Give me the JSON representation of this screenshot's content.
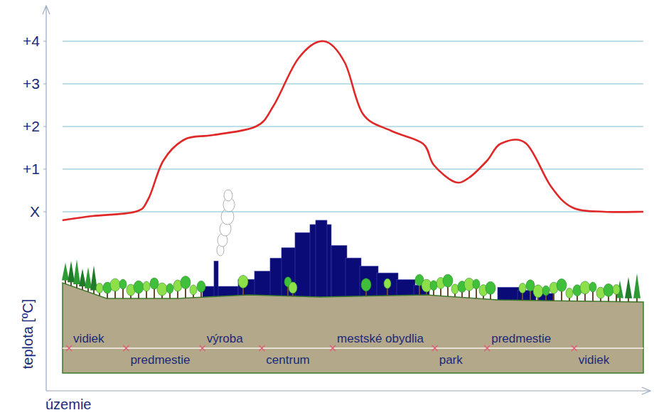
{
  "chart_data": {
    "type": "line",
    "y_label": "teplota [ºC]",
    "x_label": "územie",
    "x": [
      2.7,
      7.7,
      14.8,
      17.0,
      19.5,
      23.1,
      27.8,
      34.9,
      37.9,
      42.0,
      46.2,
      49.7,
      52.7,
      57.4,
      62.7,
      64.5,
      68.0,
      70.4,
      73.4,
      75.7,
      79.9,
      84.0,
      87.6,
      92.9,
      99.4
    ],
    "values": [
      -0.2,
      -0.1,
      0.0,
      0.3,
      1.2,
      1.7,
      1.8,
      2.0,
      2.5,
      3.6,
      4.0,
      3.5,
      2.3,
      1.9,
      1.6,
      1.1,
      0.7,
      0.8,
      1.2,
      1.6,
      1.6,
      0.6,
      0.1,
      0.0,
      0.0
    ],
    "color": "#e02828",
    "xlim": [
      0,
      100
    ],
    "ylim": [
      -4.2,
      4.8
    ],
    "yticks": [
      {
        "value": 0,
        "label": "X"
      },
      {
        "value": 1,
        "label": "+1"
      },
      {
        "value": 2,
        "label": "+2"
      },
      {
        "value": 3,
        "label": "+3"
      },
      {
        "value": 4,
        "label": "+4"
      }
    ],
    "grid": true,
    "tick_labels": "y",
    "zones": [
      {
        "label": "vidiek",
        "x": 3.8
      },
      {
        "label": "predmestie",
        "x": 13.3
      },
      {
        "label": "výroba",
        "x": 26.0
      },
      {
        "label": "centrum",
        "x": 35.9
      },
      {
        "label": "mestské obydlia",
        "x": 47.7
      },
      {
        "label": "park",
        "x": 64.7
      },
      {
        "label": "predmestie",
        "x": 73.4
      },
      {
        "label": "vidiek",
        "x": 87.9
      }
    ]
  }
}
